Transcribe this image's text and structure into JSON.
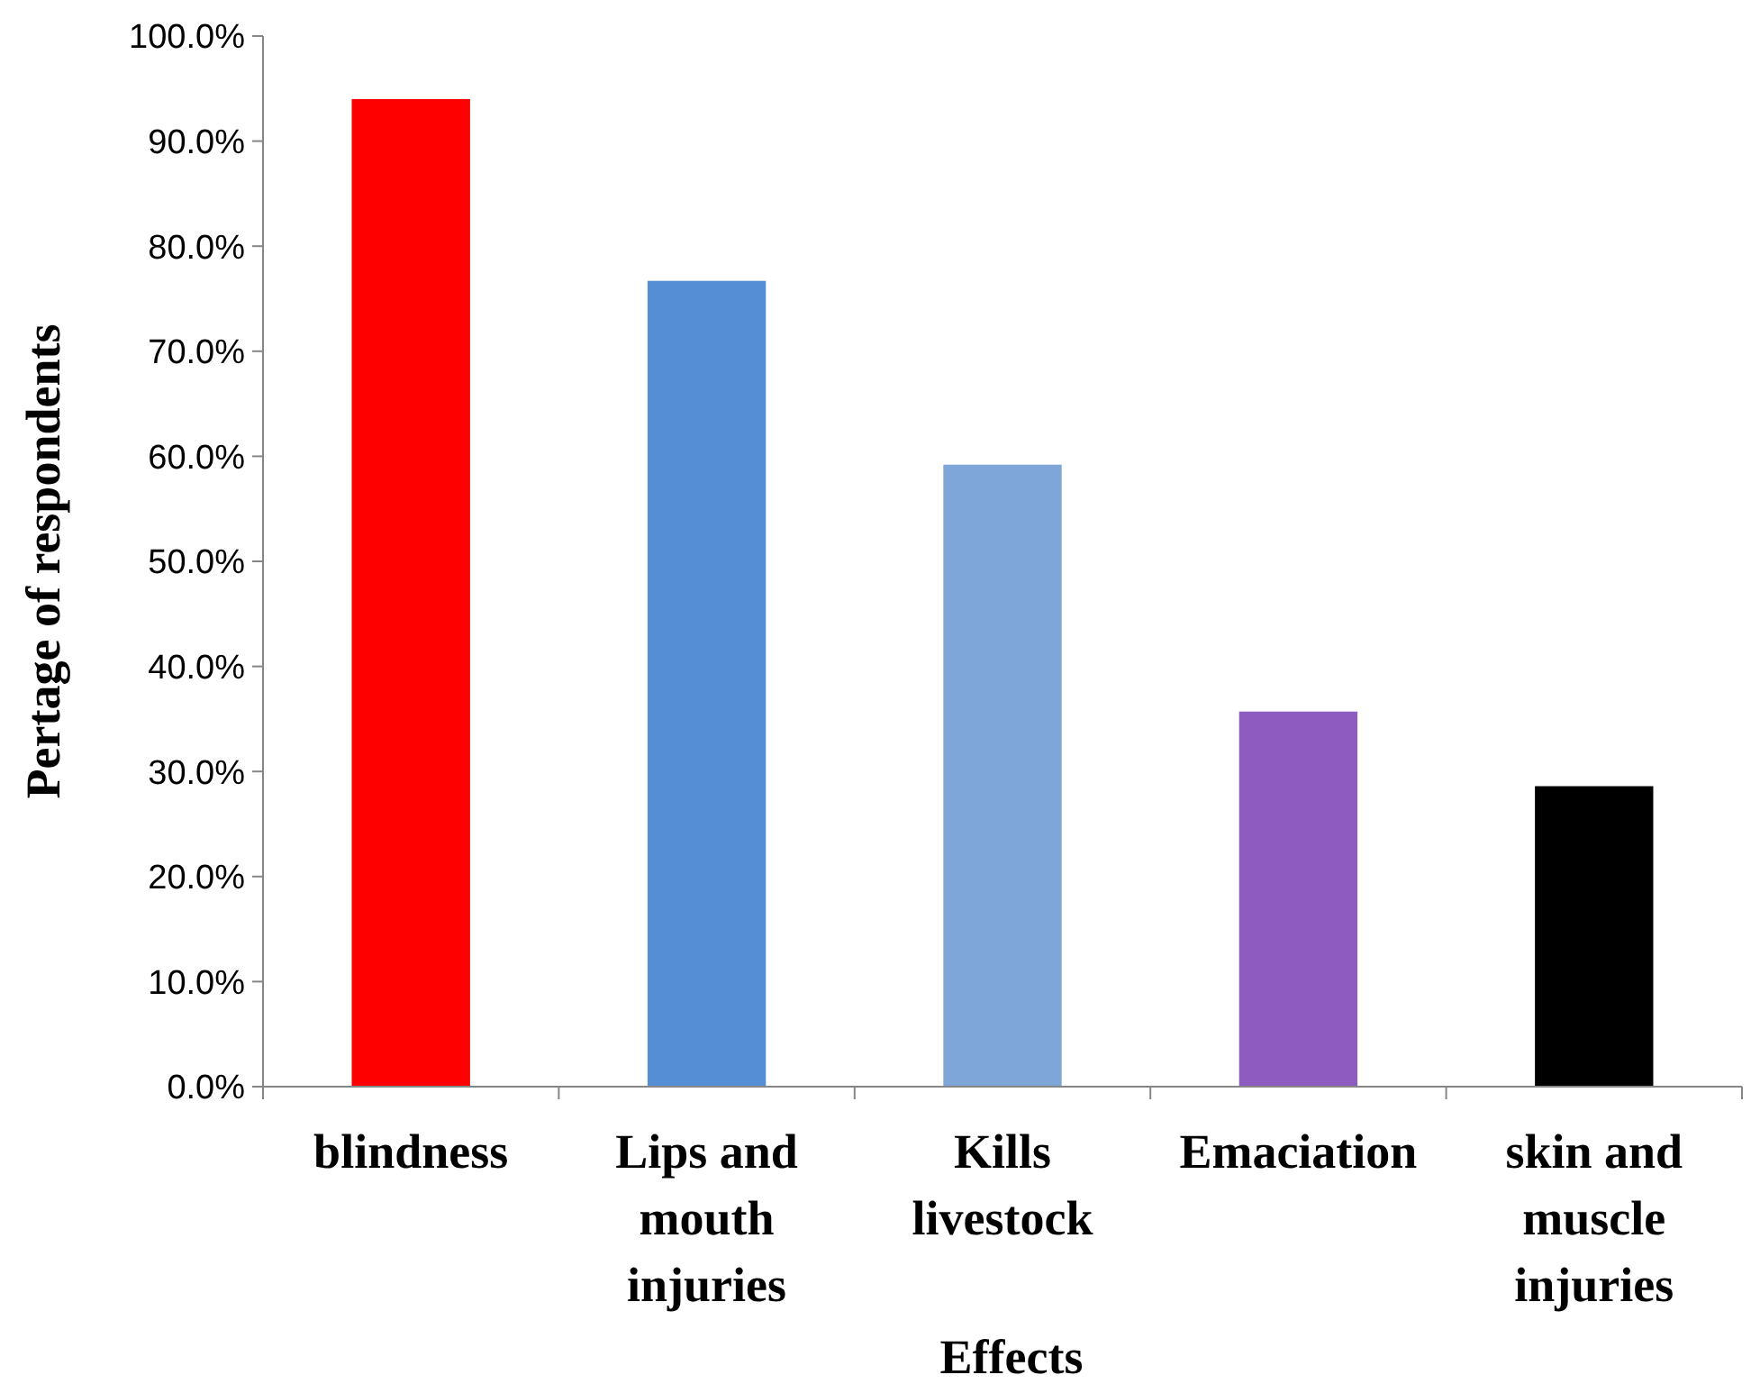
{
  "chart_data": {
    "type": "bar",
    "xlabel": "Effects",
    "ylabel": "Pertage of respondents",
    "categories": [
      "blindness",
      "Lips and mouth injuries",
      "Kills livestock",
      "Emaciation",
      "skin and muscle injuries"
    ],
    "values": [
      94.0,
      76.7,
      59.2,
      35.7,
      28.6
    ],
    "colors": [
      "#ff0000",
      "#558ed5",
      "#7fa6d9",
      "#8e5cc0",
      "#000000"
    ],
    "ylim": [
      0,
      100
    ],
    "yticks": [
      {
        "value": 0,
        "label": "0.0%"
      },
      {
        "value": 10,
        "label": "10.0%"
      },
      {
        "value": 20,
        "label": "20.0%"
      },
      {
        "value": 30,
        "label": "30.0%"
      },
      {
        "value": 40,
        "label": "40.0%"
      },
      {
        "value": 50,
        "label": "50.0%"
      },
      {
        "value": 60,
        "label": "60.0%"
      },
      {
        "value": 70,
        "label": "70.0%"
      },
      {
        "value": 80,
        "label": "80.0%"
      },
      {
        "value": 90,
        "label": "90.0%"
      },
      {
        "value": 100,
        "label": "100.0%"
      }
    ],
    "grid": false
  }
}
